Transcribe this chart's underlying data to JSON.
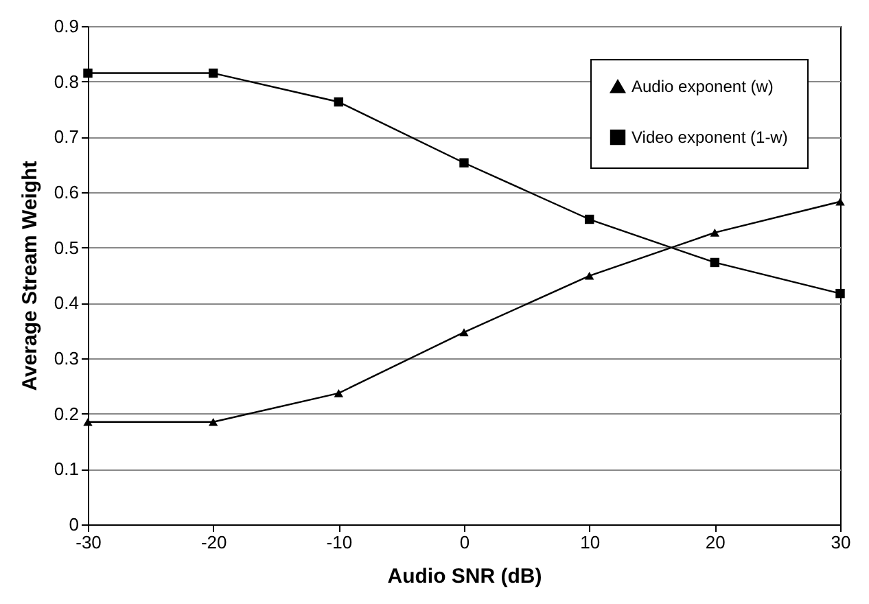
{
  "chart_data": {
    "type": "line",
    "xlabel": "Audio SNR (dB)",
    "ylabel": "Average Stream Weight",
    "x": [
      -30,
      -20,
      -10,
      0,
      10,
      20,
      30
    ],
    "series": [
      {
        "name": "Audio exponent (w)",
        "color": "#000000",
        "marker": "triangle",
        "values": [
          0.185,
          0.185,
          0.237,
          0.347,
          0.449,
          0.527,
          0.583
        ]
      },
      {
        "name": "Video exponent (1-w)",
        "color": "#000000",
        "marker": "square",
        "values": [
          0.815,
          0.815,
          0.763,
          0.653,
          0.551,
          0.473,
          0.417
        ]
      }
    ],
    "xlim": [
      -30,
      30
    ],
    "xticks": [
      -30,
      -20,
      -10,
      0,
      10,
      20,
      30
    ],
    "ylim": [
      0,
      0.9
    ],
    "yticks": [
      0,
      0.1,
      0.2,
      0.3,
      0.4,
      0.5,
      0.6,
      0.7,
      0.8,
      0.9
    ],
    "grid": "y",
    "legend": "top right",
    "line_style": "solid"
  }
}
